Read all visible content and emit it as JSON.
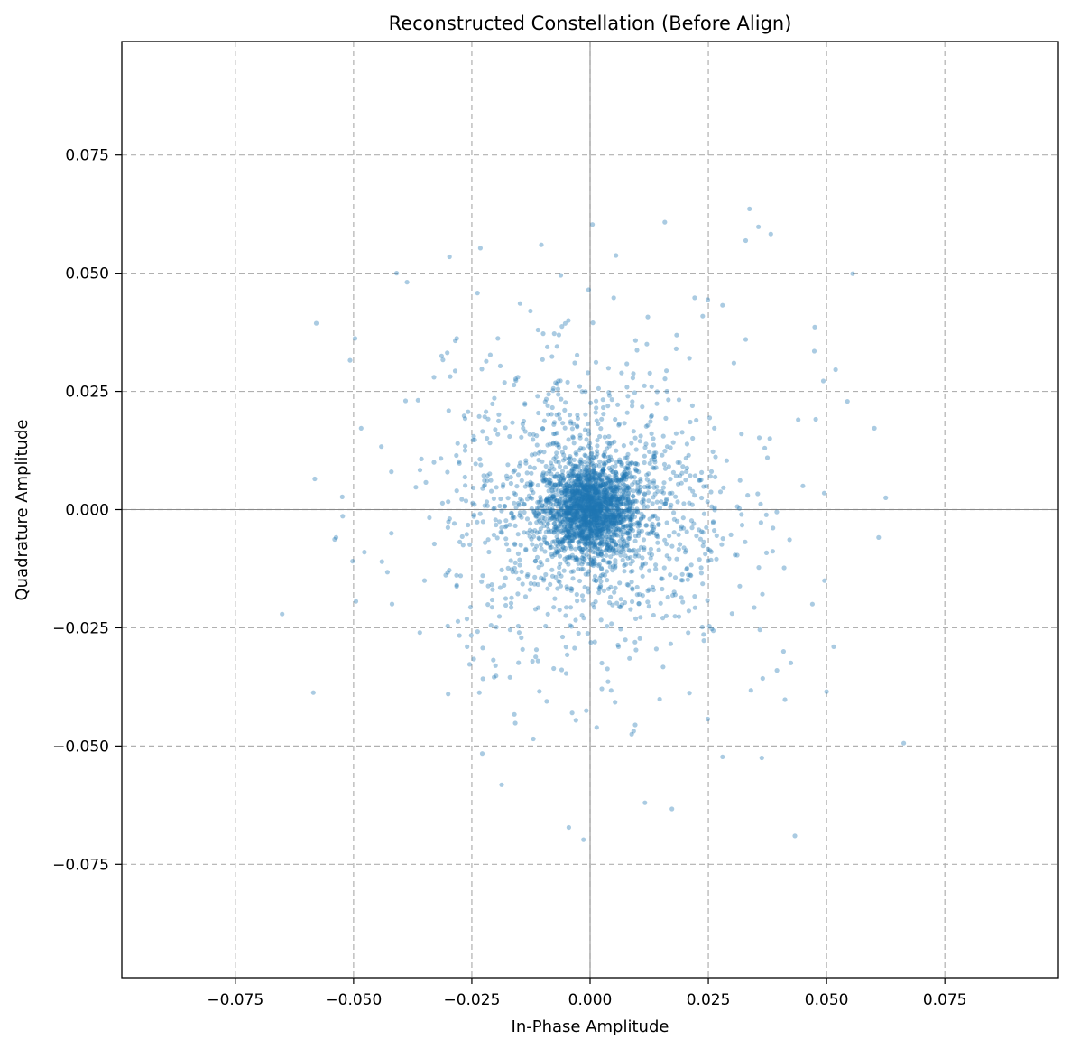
{
  "chart_data": {
    "type": "scatter",
    "title": "Reconstructed Constellation (Before Align)",
    "xlabel": "In-Phase Amplitude",
    "ylabel": "Quadrature Amplitude",
    "xlim": [
      -0.099,
      0.099
    ],
    "ylim": [
      -0.099,
      0.099
    ],
    "xticks": [
      -0.075,
      -0.05,
      -0.025,
      0.0,
      0.025,
      0.05,
      0.075
    ],
    "yticks": [
      0.075,
      0.05,
      0.025,
      0.0,
      -0.025,
      -0.05,
      -0.075
    ],
    "xtick_labels": [
      "−0.075",
      "−0.050",
      "−0.025",
      "0.000",
      "0.025",
      "0.050",
      "0.075"
    ],
    "ytick_labels": [
      "0.075",
      "0.050",
      "0.025",
      "0.000",
      "−0.025",
      "−0.050",
      "−0.075"
    ],
    "grid": true,
    "grid_style": "dashed",
    "reference_lines": {
      "x": 0,
      "y": 0
    },
    "marker_color": "#1f77b4",
    "series": [
      {
        "x": [
          0.0337,
          0.0382,
          0.0356,
          0.0158,
          0.0329,
          -0.0232,
          -0.0103,
          0.0005,
          0.0555,
          -0.0409,
          -0.0387,
          -0.0579,
          -0.0497,
          -0.0238,
          -0.0148,
          0.0221,
          0.0249,
          0.028,
          0.0329,
          0.038,
          0.0475,
          0.0474,
          -0.0126,
          -0.0046,
          -0.0003,
          0.0006,
          0.005,
          -0.0282,
          -0.0285,
          -0.0314,
          -0.0195,
          0.0183,
          0.0182,
          0.0304,
          0.0519,
          0.0493,
          0.0544,
          0.0601,
          0.0625,
          0.0495,
          0.061,
          0.0477,
          -0.0484,
          -0.0582,
          -0.0524,
          -0.0523,
          -0.0537,
          -0.054,
          -0.0502,
          -0.0495,
          -0.0477,
          -0.0651,
          -0.0585,
          -0.0234,
          -0.0228,
          -0.0187,
          -0.016,
          -0.012,
          -0.0045,
          -0.0038,
          -0.0014,
          -0.0008,
          0.0088,
          0.0116,
          0.0173,
          0.0433,
          0.0515,
          0.0663,
          0.05,
          0.0412,
          0.0363,
          0.028,
          0.0249,
          -0.006,
          0.0038,
          0.0097,
          0.0147,
          0.021,
          0.024,
          0.0365,
          0.0395,
          0.0409,
          -0.03,
          -0.036,
          -0.02,
          -0.044,
          -0.042,
          -0.039,
          -0.033,
          -0.011,
          -0.007,
          0.012,
          0.021,
          0.044,
          0.047,
          -0.042,
          0.013,
          -0.011,
          -0.026,
          -0.028,
          0.006,
          0.008,
          0.03,
          0.032,
          -0.015,
          0.045,
          -0.035,
          -0.033,
          0.018,
          0.001
        ],
        "y": [
          0.0636,
          0.0583,
          0.0598,
          0.0608,
          0.0569,
          0.0553,
          0.056,
          0.0603,
          0.0499,
          0.05,
          0.0481,
          0.0394,
          0.0362,
          0.0458,
          0.0436,
          0.0448,
          0.0444,
          0.0432,
          0.036,
          0.015,
          0.0386,
          0.0335,
          0.042,
          0.04,
          0.0465,
          0.0395,
          0.0448,
          0.0362,
          0.0357,
          0.0325,
          0.0362,
          0.0369,
          0.034,
          0.031,
          0.0296,
          0.0272,
          0.0229,
          0.0172,
          0.0025,
          0.0035,
          -0.0059,
          0.0191,
          0.0172,
          0.0065,
          0.0027,
          -0.0014,
          -0.0059,
          -0.0063,
          -0.0109,
          -0.0194,
          -0.009,
          -0.0221,
          -0.0387,
          -0.0387,
          -0.0516,
          -0.0582,
          -0.0433,
          -0.0485,
          -0.0672,
          -0.043,
          -0.0698,
          -0.0425,
          -0.0475,
          -0.062,
          -0.0633,
          -0.069,
          -0.029,
          -0.0494,
          -0.0385,
          -0.0402,
          -0.0525,
          -0.0523,
          -0.0443,
          -0.0339,
          -0.0364,
          -0.0297,
          -0.0401,
          -0.0388,
          -0.0264,
          -0.0357,
          -0.034,
          -0.03,
          -0.039,
          -0.026,
          -0.033,
          -0.011,
          0.008,
          0.023,
          0.028,
          0.038,
          0.0345,
          0.035,
          0.032,
          0.019,
          -0.02,
          -0.005,
          0.026,
          -0.032,
          -0.029,
          0.014,
          -0.029,
          0.024,
          -0.022,
          0.016,
          -0.026,
          0.005,
          -0.015,
          0.01,
          -0.018,
          -0.028
        ]
      }
    ]
  }
}
